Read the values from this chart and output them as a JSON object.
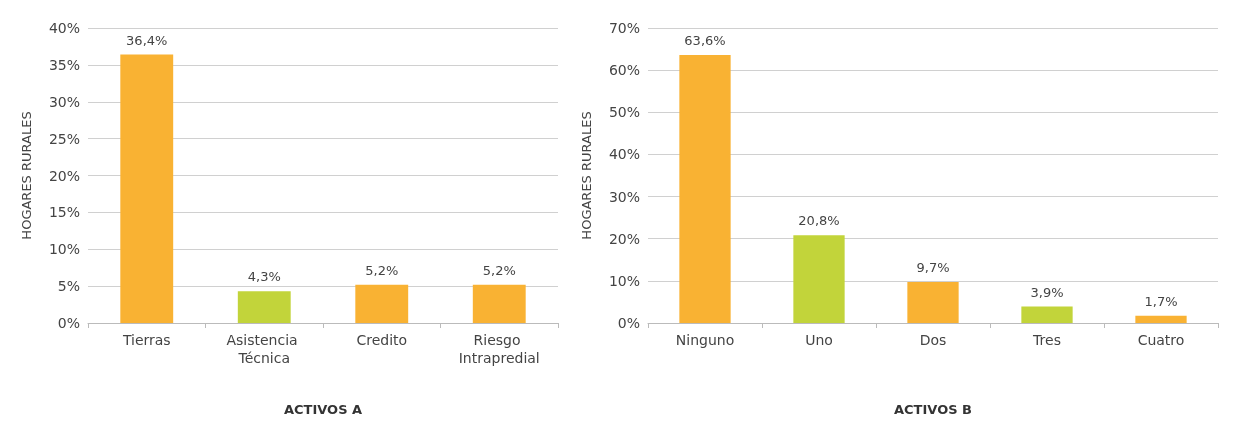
{
  "chart_data": [
    {
      "type": "bar",
      "xlabel": "ACTIVOS A",
      "ylabel": "HOGARES RURALES",
      "categories": [
        "Tierras",
        "Asistencia Técnica",
        "Credito",
        "Riesgo Intrapredial"
      ],
      "values": [
        36.4,
        4.3,
        5.2,
        5.2
      ],
      "colors": [
        "#f9b233",
        "#c2d43a",
        "#f9b233",
        "#f9b233"
      ],
      "value_labels": [
        "36,4%",
        "4,3%",
        "5,2%",
        "5,2%"
      ],
      "ylim": [
        0,
        40
      ],
      "yticks": [
        {
          "value": 0,
          "label": "0%"
        },
        {
          "value": 5,
          "label": "5%"
        },
        {
          "value": 10,
          "label": "10%"
        },
        {
          "value": 15,
          "label": "15%"
        },
        {
          "value": 20,
          "label": "20%"
        },
        {
          "value": 25,
          "label": "25%"
        },
        {
          "value": 30,
          "label": "30%"
        },
        {
          "value": 35,
          "label": "35%"
        },
        {
          "value": 40,
          "label": "40%"
        }
      ],
      "grid": "y"
    },
    {
      "type": "bar",
      "xlabel": "ACTIVOS B",
      "ylabel": "HOGARES RURALES",
      "categories": [
        "Ninguno",
        "Uno",
        "Dos",
        "Tres",
        "Cuatro"
      ],
      "values": [
        63.6,
        20.8,
        9.7,
        3.9,
        1.7
      ],
      "colors": [
        "#f9b233",
        "#c2d43a",
        "#f9b233",
        "#c2d43a",
        "#f9b233"
      ],
      "value_labels": [
        "63,6%",
        "20,8%",
        "9,7%",
        "3,9%",
        "1,7%"
      ],
      "ylim": [
        0,
        70
      ],
      "yticks": [
        {
          "value": 0,
          "label": "0%"
        },
        {
          "value": 10,
          "label": "10%"
        },
        {
          "value": 20,
          "label": "20%"
        },
        {
          "value": 30,
          "label": "30%"
        },
        {
          "value": 40,
          "label": "40%"
        },
        {
          "value": 50,
          "label": "50%"
        },
        {
          "value": 60,
          "label": "60%"
        },
        {
          "value": 70,
          "label": "70%"
        }
      ],
      "grid": "y"
    }
  ]
}
